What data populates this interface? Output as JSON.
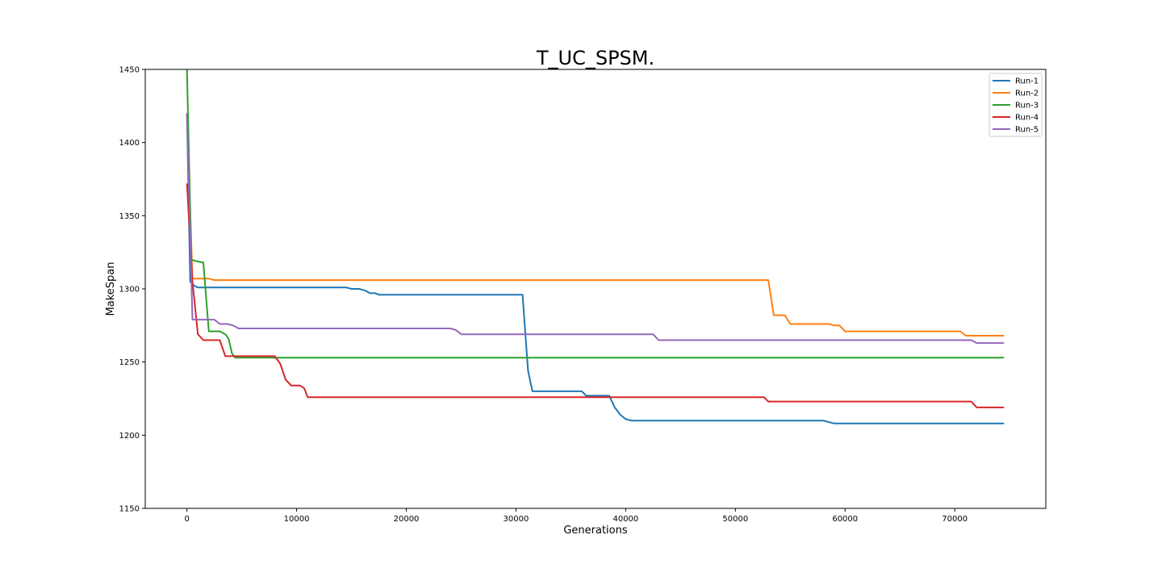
{
  "chart_data": {
    "type": "line",
    "title": "T_UC_SPSM.",
    "xlabel": "Generations",
    "ylabel": "MakeSpan",
    "xlim": [
      -3800,
      78300
    ],
    "ylim": [
      1150,
      1450
    ],
    "xticks": [
      0,
      10000,
      20000,
      30000,
      40000,
      50000,
      60000,
      70000
    ],
    "yticks": [
      1150,
      1200,
      1250,
      1300,
      1350,
      1400,
      1450
    ],
    "grid": false,
    "legend_position": "top-right",
    "series": [
      {
        "name": "Run-1",
        "color": "#1f77b4",
        "points": [
          [
            0,
            1420
          ],
          [
            300,
            1305
          ],
          [
            700,
            1302
          ],
          [
            1000,
            1301
          ],
          [
            14500,
            1301
          ],
          [
            15000,
            1300
          ],
          [
            15700,
            1300
          ],
          [
            16200,
            1299
          ],
          [
            16700,
            1297
          ],
          [
            17200,
            1297
          ],
          [
            17500,
            1296
          ],
          [
            30600,
            1296
          ],
          [
            30800,
            1275
          ],
          [
            31100,
            1244
          ],
          [
            31500,
            1230
          ],
          [
            36000,
            1230
          ],
          [
            36400,
            1227
          ],
          [
            38500,
            1227
          ],
          [
            39000,
            1219
          ],
          [
            39500,
            1214
          ],
          [
            40000,
            1211
          ],
          [
            40500,
            1210
          ],
          [
            58000,
            1210
          ],
          [
            59000,
            1208
          ],
          [
            74500,
            1208
          ]
        ]
      },
      {
        "name": "Run-2",
        "color": "#ff7f0e",
        "points": [
          [
            0,
            1420
          ],
          [
            500,
            1307
          ],
          [
            2000,
            1307
          ],
          [
            2500,
            1306
          ],
          [
            53000,
            1306
          ],
          [
            53500,
            1282
          ],
          [
            54500,
            1282
          ],
          [
            55000,
            1276
          ],
          [
            58500,
            1276
          ],
          [
            59000,
            1275
          ],
          [
            59500,
            1275
          ],
          [
            60000,
            1271
          ],
          [
            70500,
            1271
          ],
          [
            71000,
            1268
          ],
          [
            74500,
            1268
          ]
        ]
      },
      {
        "name": "Run-3",
        "color": "#2ca02c",
        "points": [
          [
            0,
            1450
          ],
          [
            400,
            1320
          ],
          [
            800,
            1319
          ],
          [
            1500,
            1318
          ],
          [
            2000,
            1271
          ],
          [
            3000,
            1271
          ],
          [
            3500,
            1269
          ],
          [
            3800,
            1266
          ],
          [
            4100,
            1256
          ],
          [
            4400,
            1253
          ],
          [
            74500,
            1253
          ]
        ]
      },
      {
        "name": "Run-4",
        "color": "#d62728",
        "points": [
          [
            0,
            1372
          ],
          [
            500,
            1305
          ],
          [
            1000,
            1269
          ],
          [
            1500,
            1265
          ],
          [
            3000,
            1265
          ],
          [
            3500,
            1254
          ],
          [
            8000,
            1254
          ],
          [
            8500,
            1249
          ],
          [
            9000,
            1238
          ],
          [
            9500,
            1234
          ],
          [
            10300,
            1234
          ],
          [
            10700,
            1232
          ],
          [
            11000,
            1226
          ],
          [
            52600,
            1226
          ],
          [
            53000,
            1223
          ],
          [
            71500,
            1223
          ],
          [
            72000,
            1219
          ],
          [
            74500,
            1219
          ]
        ]
      },
      {
        "name": "Run-5",
        "color": "#9467bd",
        "points": [
          [
            0,
            1420
          ],
          [
            500,
            1279
          ],
          [
            2500,
            1279
          ],
          [
            3000,
            1276
          ],
          [
            3700,
            1276
          ],
          [
            4200,
            1275
          ],
          [
            4700,
            1273
          ],
          [
            24000,
            1273
          ],
          [
            24500,
            1272
          ],
          [
            25000,
            1269
          ],
          [
            42500,
            1269
          ],
          [
            43000,
            1265
          ],
          [
            71500,
            1265
          ],
          [
            72000,
            1263
          ],
          [
            74500,
            1263
          ]
        ]
      }
    ]
  }
}
